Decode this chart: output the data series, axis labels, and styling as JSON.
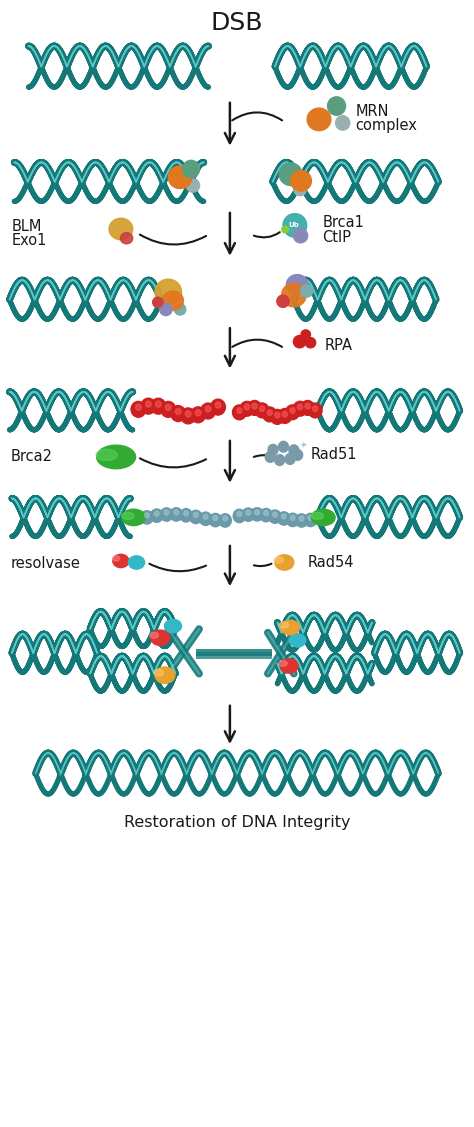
{
  "title": "DSB",
  "bottom_text": "Restoration of DNA Integrity",
  "background_color": "#ffffff",
  "dna_color": "#1a8a8a",
  "labels": {
    "mrn": [
      "MRN",
      "complex"
    ],
    "blm": [
      "BLM",
      "Exo1"
    ],
    "brca1": [
      "Brca1",
      "CtIP"
    ],
    "rpa": "RPA",
    "brca2": "Brca2",
    "rad51": "Rad51",
    "resolvase": "resolvase",
    "rad54": "Rad54"
  },
  "arrow_color": "#1a1a1a",
  "title_fontsize": 18,
  "label_fontsize": 10.5
}
